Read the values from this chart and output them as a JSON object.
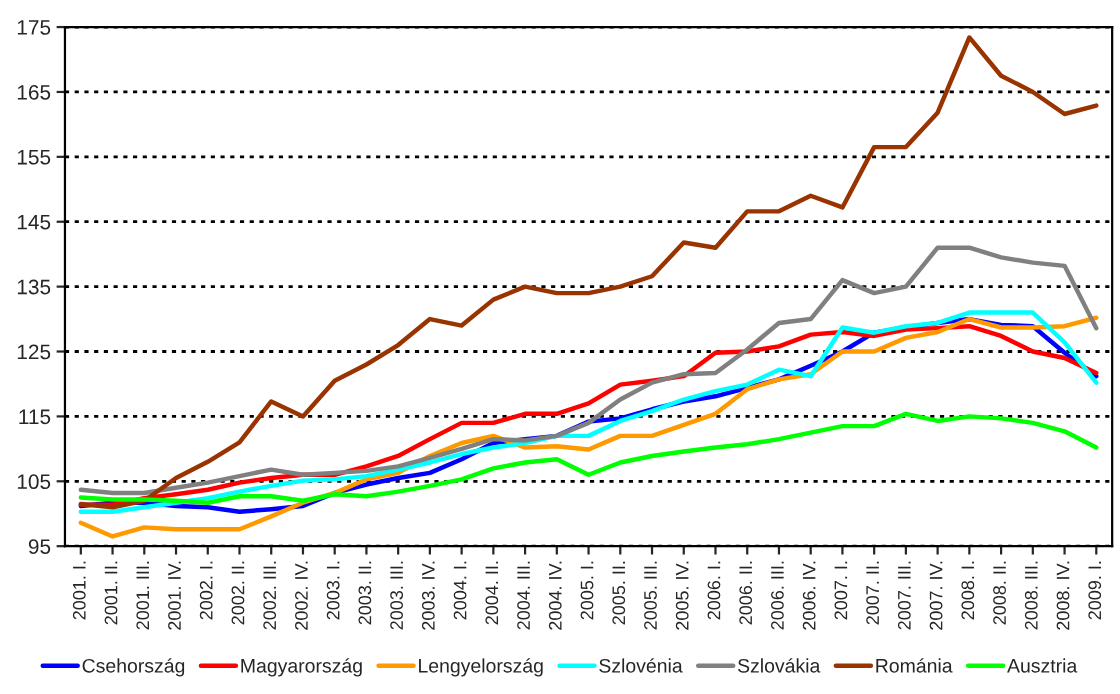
{
  "chart_data": {
    "type": "line",
    "categories": [
      "2001. I.",
      "2001. II.",
      "2001. III.",
      "2001. IV.",
      "2002. I.",
      "2002. II.",
      "2002. III.",
      "2002. IV.",
      "2003. I.",
      "2003. II.",
      "2003. III.",
      "2003. IV.",
      "2004. I.",
      "2004. II.",
      "2004. III.",
      "2004. IV.",
      "2005. I.",
      "2005. II.",
      "2005. III.",
      "2005. IV.",
      "2006. I.",
      "2006. II.",
      "2006. III.",
      "2006. IV.",
      "2007. I.",
      "2007. II.",
      "2007. III.",
      "2007. IV.",
      "2008. I.",
      "2008. II.",
      "2008. III.",
      "2008. IV.",
      "2009. I."
    ],
    "series": [
      {
        "name": "Csehország",
        "color": "#0000ff",
        "values": [
          101.2,
          101.7,
          101.7,
          101.2,
          101,
          100.3,
          100.7,
          101.2,
          103.2,
          104.5,
          105.5,
          106.3,
          108.4,
          110.9,
          111.5,
          112,
          114.2,
          114.7,
          116.1,
          117.3,
          118.1,
          119.4,
          120.7,
          122.8,
          125,
          127.9,
          128.7,
          129.4,
          130,
          129.1,
          128.9,
          124.8,
          121.2
        ]
      },
      {
        "name": "Magyarország",
        "color": "#ff0000",
        "values": [
          101.4,
          101.4,
          102.4,
          103,
          103.7,
          104.8,
          105.5,
          106,
          106,
          107.3,
          108.9,
          111.5,
          114,
          114,
          115.4,
          115.4,
          117,
          119.9,
          120.5,
          121.2,
          124.8,
          125,
          125.8,
          127.6,
          128,
          127.4,
          128.4,
          128.6,
          128.9,
          127.4,
          125,
          124,
          121.7
        ]
      },
      {
        "name": "Lengyelország",
        "color": "#ff9900",
        "values": [
          98.6,
          96.5,
          97.9,
          97.6,
          97.6,
          97.6,
          99.6,
          101.7,
          103.2,
          105.3,
          106.3,
          108.9,
          110.9,
          112,
          110.2,
          110.4,
          109.9,
          112,
          112,
          113.7,
          115.4,
          119.2,
          120.7,
          121.5,
          125,
          125,
          127.1,
          128,
          130,
          128.7,
          128.7,
          128.9,
          130.2
        ]
      },
      {
        "name": "Szlovénia",
        "color": "#00ffff",
        "values": [
          100.3,
          100.3,
          101,
          101.7,
          102.4,
          103.4,
          104.3,
          105.1,
          105.3,
          105.8,
          106.8,
          107.9,
          109.2,
          110.2,
          110.9,
          112,
          112,
          114.3,
          115.8,
          117.6,
          118.9,
          119.9,
          122.2,
          121.2,
          128.7,
          127.9,
          128.9,
          129.4,
          131,
          131,
          131,
          126.4,
          120.2
        ]
      },
      {
        "name": "Szlovákia",
        "color": "#808080",
        "values": [
          103.7,
          103.2,
          103.2,
          104,
          104.8,
          105.8,
          106.8,
          106,
          106.3,
          106.6,
          107.3,
          108.6,
          110,
          111.5,
          111.3,
          112,
          114,
          117.6,
          120.2,
          121.5,
          121.7,
          125.3,
          129.4,
          130,
          136,
          134,
          135,
          141,
          141,
          139.5,
          138.7,
          138.2,
          128.6
        ]
      },
      {
        "name": "Románia",
        "color": "#993300",
        "values": [
          101.5,
          101,
          102,
          105.5,
          108,
          111,
          117.3,
          115,
          120.5,
          123,
          126,
          130,
          129,
          133,
          135,
          134,
          134,
          135,
          136.6,
          141.8,
          141,
          146.6,
          146.6,
          149,
          147.2,
          156.5,
          156.5,
          161.8,
          173.4,
          167.5,
          165,
          161.6,
          162.9
        ]
      },
      {
        "name": "Ausztria",
        "color": "#00ff00",
        "values": [
          102.5,
          102.2,
          102.2,
          102,
          101.7,
          102.7,
          102.7,
          102,
          103,
          102.7,
          103.4,
          104.3,
          105.3,
          107,
          107.9,
          108.4,
          106,
          107.9,
          108.9,
          109.6,
          110.2,
          110.7,
          111.5,
          112.5,
          113.5,
          113.5,
          115.4,
          114.3,
          115,
          114.7,
          114,
          112.7,
          110.2
        ]
      }
    ],
    "ylim": [
      95,
      175
    ],
    "yticks": [
      95,
      105,
      115,
      125,
      135,
      145,
      155,
      165,
      175
    ],
    "grid": "y",
    "legend": "bottom",
    "marker": "none",
    "line_style": "solid"
  }
}
